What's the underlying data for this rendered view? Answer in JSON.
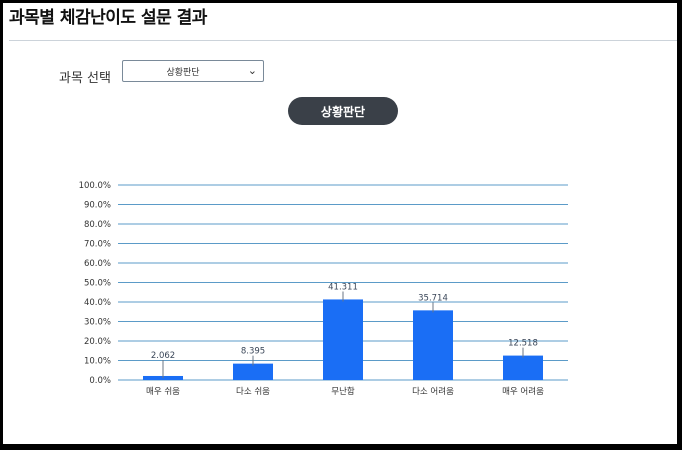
{
  "page": {
    "title": "과목별 체감난이도 설문 결과"
  },
  "selector": {
    "label": "과목 선택",
    "value": "상황판단"
  },
  "subject_badge": {
    "label": "상황판단"
  },
  "chart_data": {
    "type": "bar",
    "categories": [
      "매우 쉬움",
      "다소 쉬움",
      "무난함",
      "다소 어려움",
      "매우 어려움"
    ],
    "values": [
      2.062,
      8.395,
      41.311,
      35.714,
      12.518
    ],
    "data_labels": [
      "2.062",
      "8.395",
      "41.311",
      "35.714",
      "12.518"
    ],
    "y_ticks": [
      "0.0%",
      "10.0%",
      "20.0%",
      "30.0%",
      "40.0%",
      "50.0%",
      "60.0%",
      "70.0%",
      "80.0%",
      "90.0%",
      "100.0%"
    ],
    "ylim": [
      0,
      100
    ],
    "grid": true,
    "bar_color": "#1a6ef5",
    "grid_color": "#5b9bc8"
  }
}
